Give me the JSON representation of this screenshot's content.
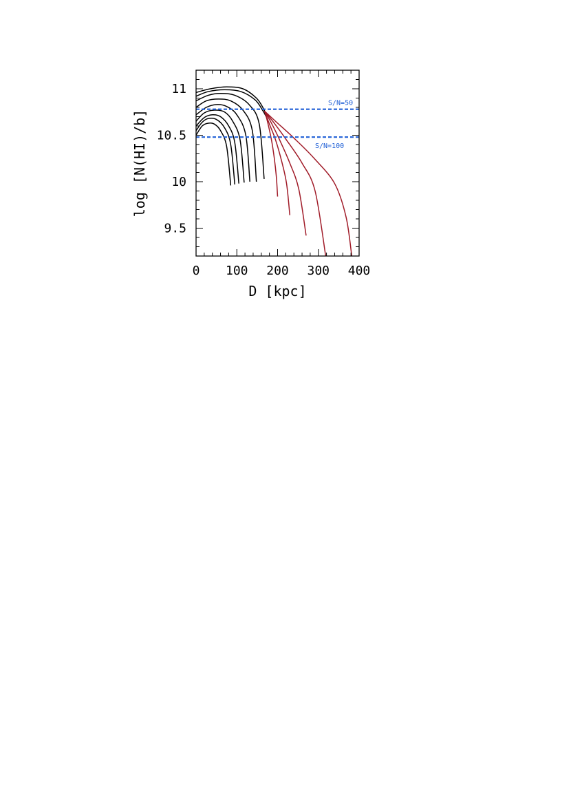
{
  "chart_data": {
    "type": "line",
    "title": "",
    "xlabel": "D [kpc]",
    "ylabel": "log [N(HI)/b]",
    "xlim": [
      0,
      400
    ],
    "ylim": [
      9.2,
      11.2
    ],
    "xticks": [
      0,
      100,
      200,
      300,
      400
    ],
    "yticks": [
      9.5,
      10,
      10.5,
      11
    ],
    "xtick_labels": [
      "0",
      "100",
      "200",
      "300",
      "400"
    ],
    "ytick_labels": [
      "9.5",
      "10",
      "10.5",
      "11"
    ],
    "grid": false,
    "colors": {
      "black_curves": "#000000",
      "red_curves": "#a01b28",
      "threshold": "#1f5fd6"
    },
    "thresholds": [
      {
        "label": "S/N=50",
        "y": 10.78
      },
      {
        "label": "S/N=100",
        "y": 10.48
      }
    ],
    "series": [
      {
        "color": "black",
        "x": [
          0,
          15,
          30,
          45,
          60,
          75,
          85
        ],
        "y": [
          10.5,
          10.6,
          10.63,
          10.62,
          10.55,
          10.38,
          9.96
        ]
      },
      {
        "color": "black",
        "x": [
          0,
          15,
          30,
          50,
          70,
          85,
          95
        ],
        "y": [
          10.55,
          10.64,
          10.68,
          10.67,
          10.58,
          10.4,
          9.97
        ]
      },
      {
        "color": "black",
        "x": [
          0,
          20,
          40,
          60,
          80,
          95,
          105
        ],
        "y": [
          10.6,
          10.69,
          10.72,
          10.7,
          10.6,
          10.42,
          9.98
        ]
      },
      {
        "color": "black",
        "x": [
          0,
          20,
          45,
          70,
          90,
          108,
          118
        ],
        "y": [
          10.65,
          10.74,
          10.77,
          10.75,
          10.65,
          10.45,
          9.99
        ]
      },
      {
        "color": "black",
        "x": [
          0,
          25,
          50,
          75,
          100,
          122,
          132
        ],
        "y": [
          10.72,
          10.8,
          10.83,
          10.81,
          10.72,
          10.5,
          10.0
        ]
      },
      {
        "color": "black",
        "x": [
          0,
          25,
          55,
          85,
          115,
          138,
          148
        ],
        "y": [
          10.8,
          10.87,
          10.89,
          10.87,
          10.77,
          10.55,
          10.0
        ]
      },
      {
        "color": "black",
        "x": [
          0,
          30,
          60,
          95,
          130,
          155,
          167
        ],
        "y": [
          10.87,
          10.93,
          10.95,
          10.93,
          10.83,
          10.62,
          10.03
        ]
      },
      {
        "color": "black",
        "x": [
          0,
          30,
          70,
          110,
          145,
          163,
          172
        ],
        "y": [
          10.92,
          10.97,
          10.99,
          10.97,
          10.88,
          10.77,
          10.7
        ]
      },
      {
        "color": "black",
        "x": [
          0,
          35,
          75,
          115,
          148,
          165,
          172
        ],
        "y": [
          10.96,
          11.0,
          11.02,
          11.0,
          10.9,
          10.79,
          10.72
        ]
      },
      {
        "color": "red",
        "x": [
          168,
          175,
          185,
          192,
          197,
          200
        ],
        "y": [
          10.76,
          10.65,
          10.45,
          10.25,
          10.05,
          9.84
        ]
      },
      {
        "color": "red",
        "x": [
          168,
          180,
          195,
          210,
          222,
          230
        ],
        "y": [
          10.76,
          10.62,
          10.45,
          10.22,
          9.98,
          9.64
        ]
      },
      {
        "color": "red",
        "x": [
          168,
          185,
          205,
          230,
          252,
          270
        ],
        "y": [
          10.76,
          10.63,
          10.45,
          10.2,
          9.92,
          9.42
        ]
      },
      {
        "color": "red",
        "x": [
          168,
          190,
          220,
          260,
          292,
          318
        ],
        "y": [
          10.76,
          10.64,
          10.46,
          10.2,
          9.9,
          9.2
        ]
      },
      {
        "color": "red",
        "x": [
          168,
          195,
          240,
          290,
          340,
          368,
          382
        ],
        "y": [
          10.76,
          10.65,
          10.47,
          10.25,
          9.98,
          9.62,
          9.2
        ]
      }
    ]
  }
}
